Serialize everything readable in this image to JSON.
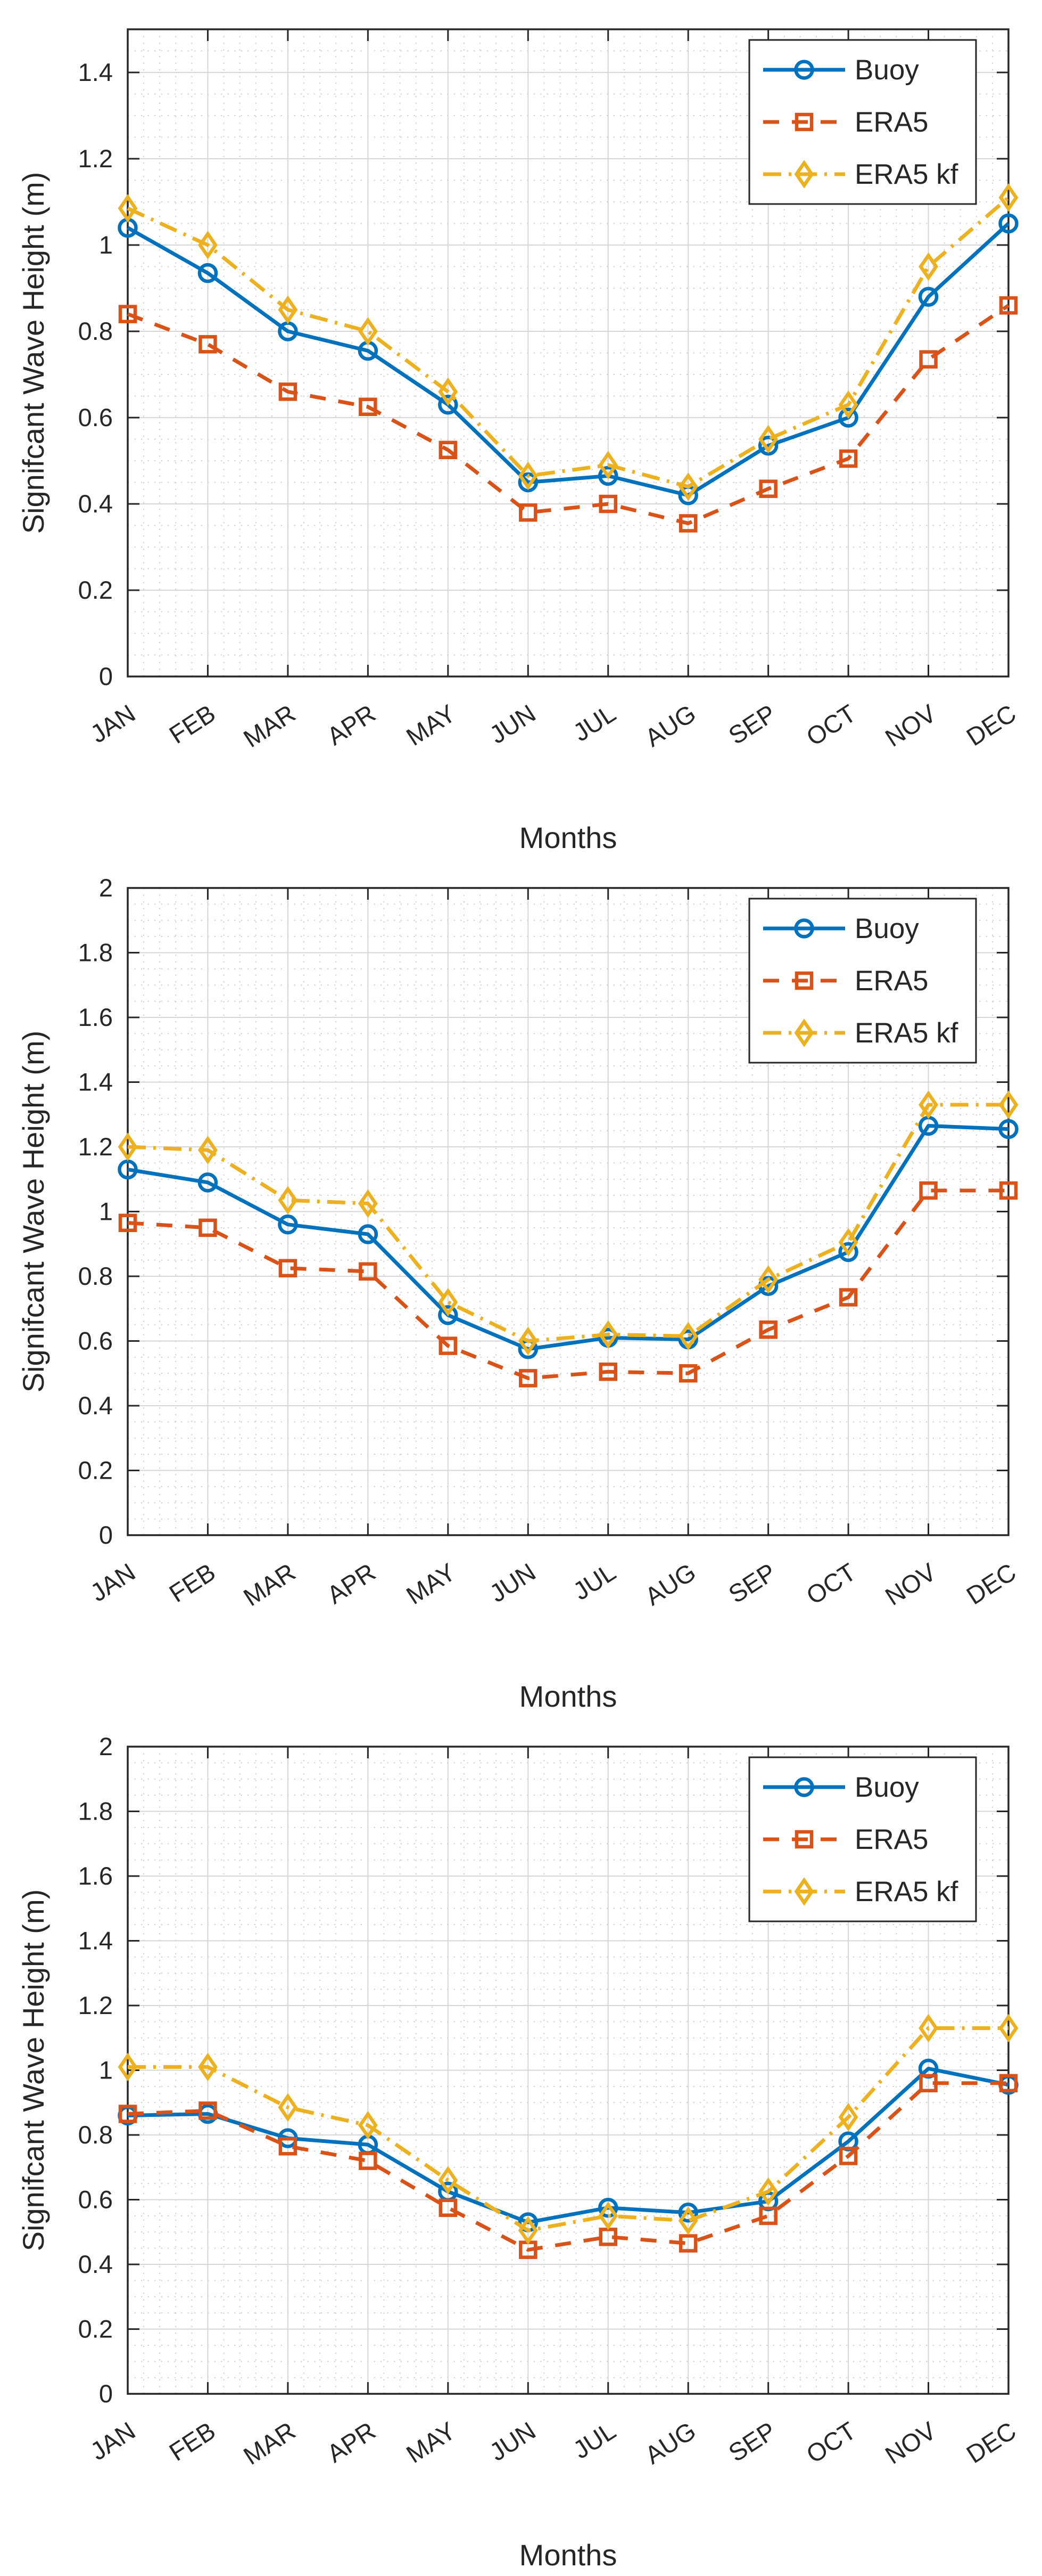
{
  "style": {
    "background": "#ffffff",
    "axis_color": "#262626",
    "text_color": "#262626",
    "major_grid_color": "#d6d6d6",
    "minor_grid_color": "#c9c9c9",
    "legend_border_color": "#262626",
    "legend_background": "#ffffff",
    "series_palette": {
      "blue": "#0072BD",
      "orange": "#D95319",
      "yellow": "#EDB120"
    }
  },
  "chart_data": [
    {
      "type": "line",
      "title": "",
      "xlabel": "Months",
      "ylabel": "Signifcant Wave Height (m)",
      "categories": [
        "JAN",
        "FEB",
        "MAR",
        "APR",
        "MAY",
        "JUN",
        "JUL",
        "AUG",
        "SEP",
        "OCT",
        "NOV",
        "DEC"
      ],
      "ylim": [
        0,
        1.5
      ],
      "ytick_step": 0.2,
      "ytick_labels": [
        "0",
        "0.2",
        "0.4",
        "0.6",
        "0.8",
        "1",
        "1.2",
        "1.4"
      ],
      "grid": "major-solid+minor-dotted",
      "legend": {
        "position": "top-right",
        "entries": [
          "Buoy",
          "ERA5",
          "ERA5 kf"
        ]
      },
      "series": [
        {
          "name": "Buoy",
          "color": "#0072BD",
          "line_style": "solid",
          "marker": "circle",
          "values": [
            1.04,
            0.935,
            0.8,
            0.755,
            0.63,
            0.45,
            0.465,
            0.42,
            0.535,
            0.6,
            0.88,
            1.05
          ]
        },
        {
          "name": "ERA5",
          "color": "#D95319",
          "line_style": "dashed",
          "marker": "square",
          "values": [
            0.84,
            0.77,
            0.66,
            0.625,
            0.525,
            0.38,
            0.4,
            0.355,
            0.435,
            0.505,
            0.735,
            0.86
          ]
        },
        {
          "name": "ERA5 kf",
          "color": "#EDB120",
          "line_style": "dashdot",
          "marker": "diamond",
          "values": [
            1.085,
            1.0,
            0.85,
            0.8,
            0.66,
            0.465,
            0.49,
            0.44,
            0.55,
            0.63,
            0.95,
            1.11
          ]
        }
      ]
    },
    {
      "type": "line",
      "title": "",
      "xlabel": "Months",
      "ylabel": "Signifcant Wave Height (m)",
      "categories": [
        "JAN",
        "FEB",
        "MAR",
        "APR",
        "MAY",
        "JUN",
        "JUL",
        "AUG",
        "SEP",
        "OCT",
        "NOV",
        "DEC"
      ],
      "ylim": [
        0,
        2
      ],
      "ytick_step": 0.2,
      "ytick_labels": [
        "0",
        "0.2",
        "0.4",
        "0.6",
        "0.8",
        "1",
        "1.2",
        "1.4",
        "1.6",
        "1.8",
        "2"
      ],
      "grid": "major-solid+minor-dotted",
      "legend": {
        "position": "top-right",
        "entries": [
          "Buoy",
          "ERA5",
          "ERA5 kf"
        ]
      },
      "series": [
        {
          "name": "Buoy",
          "color": "#0072BD",
          "line_style": "solid",
          "marker": "circle",
          "values": [
            1.13,
            1.09,
            0.96,
            0.93,
            0.68,
            0.575,
            0.61,
            0.605,
            0.77,
            0.875,
            1.265,
            1.255
          ]
        },
        {
          "name": "ERA5",
          "color": "#D95319",
          "line_style": "dashed",
          "marker": "square",
          "values": [
            0.965,
            0.95,
            0.825,
            0.815,
            0.585,
            0.485,
            0.505,
            0.5,
            0.635,
            0.735,
            1.065,
            1.065
          ]
        },
        {
          "name": "ERA5 kf",
          "color": "#EDB120",
          "line_style": "dashdot",
          "marker": "diamond",
          "values": [
            1.2,
            1.19,
            1.035,
            1.025,
            0.72,
            0.6,
            0.62,
            0.615,
            0.79,
            0.905,
            1.33,
            1.33
          ]
        }
      ]
    },
    {
      "type": "line",
      "title": "",
      "xlabel": "Months",
      "ylabel": "Signifcant Wave Height (m)",
      "categories": [
        "JAN",
        "FEB",
        "MAR",
        "APR",
        "MAY",
        "JUN",
        "JUL",
        "AUG",
        "SEP",
        "OCT",
        "NOV",
        "DEC"
      ],
      "ylim": [
        0,
        2
      ],
      "ytick_step": 0.2,
      "ytick_labels": [
        "0",
        "0.2",
        "0.4",
        "0.6",
        "0.8",
        "1",
        "1.2",
        "1.4",
        "1.6",
        "1.8",
        "2"
      ],
      "grid": "major-solid+minor-dotted",
      "legend": {
        "position": "top-right",
        "entries": [
          "Buoy",
          "ERA5",
          "ERA5 kf"
        ]
      },
      "series": [
        {
          "name": "Buoy",
          "color": "#0072BD",
          "line_style": "solid",
          "marker": "circle",
          "values": [
            0.86,
            0.865,
            0.79,
            0.77,
            0.625,
            0.53,
            0.575,
            0.56,
            0.595,
            0.78,
            1.005,
            0.955
          ]
        },
        {
          "name": "ERA5",
          "color": "#D95319",
          "line_style": "dashed",
          "marker": "square",
          "values": [
            0.865,
            0.875,
            0.765,
            0.72,
            0.575,
            0.445,
            0.485,
            0.465,
            0.55,
            0.735,
            0.96,
            0.96
          ]
        },
        {
          "name": "ERA5 kf",
          "color": "#EDB120",
          "line_style": "dashdot",
          "marker": "diamond",
          "values": [
            1.01,
            1.01,
            0.885,
            0.83,
            0.66,
            0.505,
            0.55,
            0.535,
            0.625,
            0.855,
            1.13,
            1.13
          ]
        }
      ]
    }
  ]
}
